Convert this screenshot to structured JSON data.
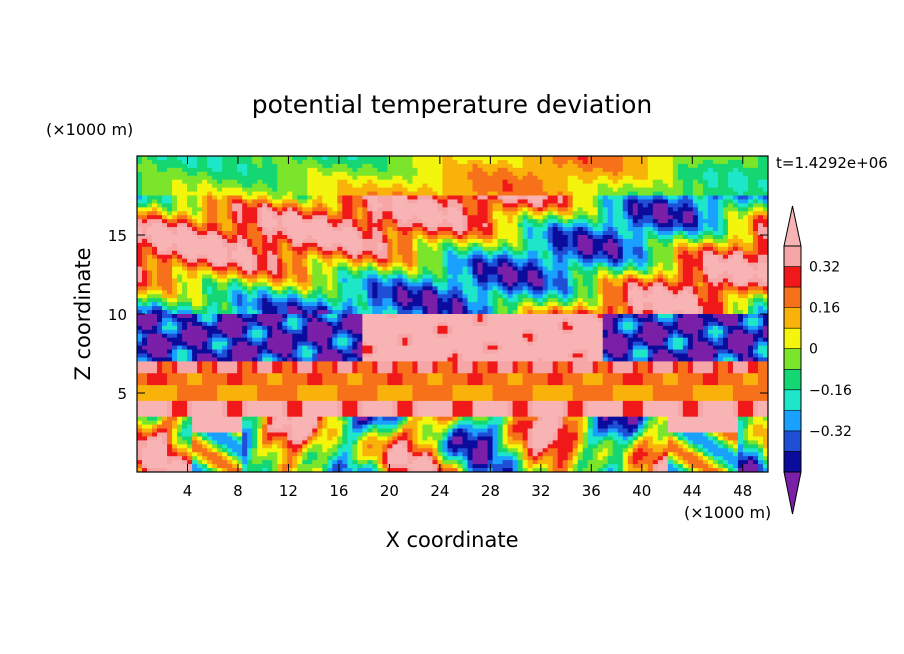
{
  "chart_data": {
    "type": "heatmap",
    "title": "potential temperature deviation",
    "xlabel": "X coordinate",
    "ylabel": "Z coordinate",
    "x_unit": "(×1000 m)",
    "y_unit": "(×1000 m)",
    "time_label": "t=1.4292e+06",
    "xlim": [
      0,
      50
    ],
    "ylim": [
      0,
      20
    ],
    "x_ticks": [
      4,
      8,
      12,
      16,
      20,
      24,
      28,
      32,
      36,
      40,
      44,
      48
    ],
    "y_ticks": [
      5,
      10,
      15
    ],
    "colorbar": {
      "levels": [
        -0.48,
        -0.4,
        -0.32,
        -0.24,
        -0.16,
        -0.08,
        0,
        0.08,
        0.16,
        0.24,
        0.32,
        0.4
      ],
      "colors": [
        "#7a1fa8",
        "#0b0b9c",
        "#1f4fd6",
        "#1aa0ff",
        "#1ee6c8",
        "#14d773",
        "#7ae52a",
        "#f3f50c",
        "#f8b20a",
        "#f7701a",
        "#f01818",
        "#f6a6a6",
        "#f8b4b4"
      ],
      "labels": [
        "0.32",
        "0.16",
        "0",
        "−0.16",
        "−0.32"
      ],
      "label_values": [
        0.32,
        0.16,
        0,
        -0.16,
        -0.32
      ],
      "extend": "both"
    },
    "grid": false,
    "legend": "right"
  }
}
